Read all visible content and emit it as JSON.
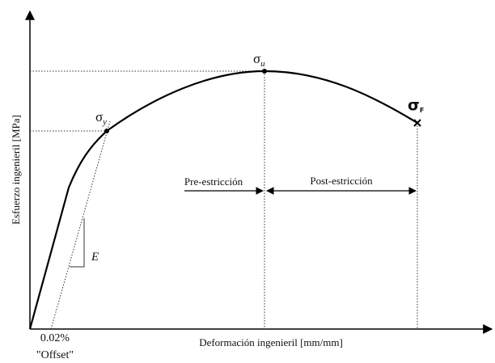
{
  "axes": {
    "y_label": "Esfuerzo ingenieril [MPa]",
    "x_label": "Deformación ingenieril [mm/mm]"
  },
  "points": {
    "yield": {
      "symbol": "σ",
      "sub": "y"
    },
    "ultimate": {
      "symbol": "σ",
      "sub": "u"
    },
    "fracture": {
      "symbol": "σ",
      "sub": "F"
    }
  },
  "offset": {
    "value": "0.02%",
    "label": "\"Offset\""
  },
  "modulus": "E",
  "regions": {
    "pre": "Pre-estricción",
    "post": "Post-estricción"
  }
}
